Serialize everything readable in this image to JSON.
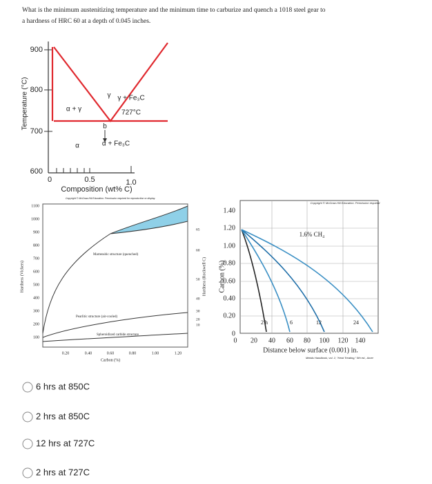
{
  "question": {
    "lines": [
      "What is the minimum austenitizing temperature and the minimum time to carburize and quench a 1018 steel gear to",
      "a hardness of HRC 60 at a depth of 0.045 inches."
    ]
  },
  "figures": [
    {
      "ylabel": "Temperature (°C)",
      "yticks": [
        "900",
        "800",
        "700",
        "600"
      ],
      "xticks": [
        "0",
        "0.5",
        "1.0"
      ],
      "xlabel": "Composition (wt% C)",
      "labels": [
        "γ",
        "γ + Fe₃C",
        "727°C",
        "α + γ",
        "b",
        "α",
        "α + Fe₃C"
      ]
    },
    {
      "note": "Copyright © McGraw-Hill Education. Permission required for reproduction or display.",
      "ylabel": "Hardness (Vickers)",
      "y2label": "Hardness (Rockwell C)",
      "yticks": [
        "1100",
        "1000",
        "900",
        "800",
        "700",
        "600",
        "500",
        "400",
        "300",
        "200",
        "100"
      ],
      "y2ticks": [
        "65",
        "60",
        "50",
        "40",
        "30",
        "20",
        "10"
      ],
      "xticks": [
        "0.20",
        "0.40",
        "0.60",
        "0.80",
        "1.00",
        "1.20"
      ],
      "xlabel": "Carbon (%)",
      "labels": [
        "Martensitic structure (quenched)",
        "Pearlitic structure (air-cooled)",
        "Spheroidized carbide structure"
      ]
    },
    {
      "note": "Copyright © McGraw-Hill Education. Permission required",
      "ylabel": "Carbon (%)",
      "yticks": [
        "1.40",
        "1.20",
        "1.00",
        "0.80",
        "0.60",
        "0.40",
        "0.20",
        "0"
      ],
      "xticks": [
        "0",
        "20",
        "40",
        "60",
        "80",
        "100",
        "120",
        "140"
      ],
      "xlabel": "Distance below surface (0.001) in.",
      "source": "Metals Handbook, vol. 2, \"Heat Treating,\" 8th ed., Amer",
      "gas": "1.6% CH₄",
      "labels": [
        "2 h",
        "6",
        "12",
        "24"
      ]
    }
  ],
  "options": [
    "6 hrs at 850C",
    "2 hrs at 850C",
    "12 hrs at 727C",
    "2 hrs at 727C"
  ]
}
